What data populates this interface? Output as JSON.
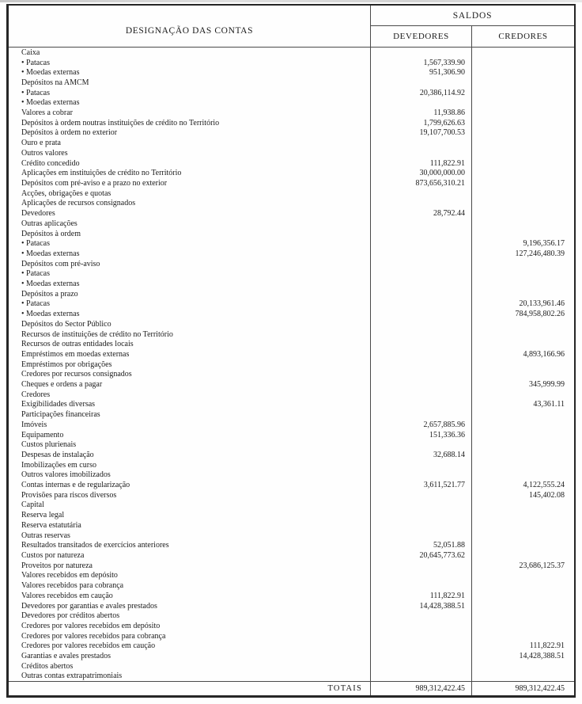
{
  "header": {
    "designacao": "DESIGNAÇÃO DAS CONTAS",
    "saldos": "SALDOS",
    "devedores": "DEVEDORES",
    "credores": "CREDORES"
  },
  "rows": [
    {
      "label": "Caixa",
      "dev": "",
      "cred": ""
    },
    {
      "label": "• Patacas",
      "dev": "1,567,339.90",
      "cred": ""
    },
    {
      "label": "• Moedas externas",
      "dev": "951,306.90",
      "cred": ""
    },
    {
      "label": "Depósitos na AMCM",
      "dev": "",
      "cred": ""
    },
    {
      "label": "• Patacas",
      "dev": "20,386,114.92",
      "cred": ""
    },
    {
      "label": "• Moedas externas",
      "dev": "",
      "cred": ""
    },
    {
      "label": "Valores a cobrar",
      "dev": "11,938.86",
      "cred": ""
    },
    {
      "label": "Depósitos à ordem noutras instituições de crédito no Território",
      "dev": "1,799,626.63",
      "cred": ""
    },
    {
      "label": "Depósitos à ordem no exterior",
      "dev": "19,107,700.53",
      "cred": ""
    },
    {
      "label": "Ouro e prata",
      "dev": "",
      "cred": ""
    },
    {
      "label": "Outros valores",
      "dev": "",
      "cred": ""
    },
    {
      "label": "Crédito concedido",
      "dev": "111,822.91",
      "cred": ""
    },
    {
      "label": "Aplicações em instituições de crédito no Território",
      "dev": "30,000,000.00",
      "cred": ""
    },
    {
      "label": "Depósitos com pré-aviso e a prazo no exterior",
      "dev": "873,656,310.21",
      "cred": ""
    },
    {
      "label": "Acções, obrigações e quotas",
      "dev": "",
      "cred": ""
    },
    {
      "label": "Aplicações de recursos consignados",
      "dev": "",
      "cred": ""
    },
    {
      "label": "Devedores",
      "dev": "28,792.44",
      "cred": ""
    },
    {
      "label": "Outras aplicações",
      "dev": "",
      "cred": ""
    },
    {
      "label": "Depósitos à ordem",
      "dev": "",
      "cred": ""
    },
    {
      "label": "• Patacas",
      "dev": "",
      "cred": "9,196,356.17"
    },
    {
      "label": "• Moedas externas",
      "dev": "",
      "cred": "127,246,480.39"
    },
    {
      "label": "Depósitos com pré-aviso",
      "dev": "",
      "cred": ""
    },
    {
      "label": "• Patacas",
      "dev": "",
      "cred": ""
    },
    {
      "label": "• Moedas externas",
      "dev": "",
      "cred": ""
    },
    {
      "label": "Depósitos a prazo",
      "dev": "",
      "cred": ""
    },
    {
      "label": "• Patacas",
      "dev": "",
      "cred": "20,133,961.46"
    },
    {
      "label": "• Moedas externas",
      "dev": "",
      "cred": "784,958,802.26"
    },
    {
      "label": "Depósitos do Sector Público",
      "dev": "",
      "cred": ""
    },
    {
      "label": "Recursos de instituições de crédito no Território",
      "dev": "",
      "cred": ""
    },
    {
      "label": "Recursos de outras entidades locais",
      "dev": "",
      "cred": ""
    },
    {
      "label": "Empréstimos em moedas externas",
      "dev": "",
      "cred": "4,893,166.96"
    },
    {
      "label": "Empréstimos por obrigações",
      "dev": "",
      "cred": ""
    },
    {
      "label": "Credores por recursos consignados",
      "dev": "",
      "cred": ""
    },
    {
      "label": "Cheques e ordens a pagar",
      "dev": "",
      "cred": "345,999.99"
    },
    {
      "label": "Credores",
      "dev": "",
      "cred": ""
    },
    {
      "label": "Exigibilidades diversas",
      "dev": "",
      "cred": "43,361.11"
    },
    {
      "label": "Participações financeiras",
      "dev": "",
      "cred": ""
    },
    {
      "label": "Imóveis",
      "dev": "2,657,885.96",
      "cred": ""
    },
    {
      "label": "Equipamento",
      "dev": "151,336.36",
      "cred": ""
    },
    {
      "label": "Custos plurienais",
      "dev": "",
      "cred": ""
    },
    {
      "label": "Despesas de instalação",
      "dev": "32,688.14",
      "cred": ""
    },
    {
      "label": "Imobilizações em curso",
      "dev": "",
      "cred": ""
    },
    {
      "label": "Outros valores imobilizados",
      "dev": "",
      "cred": ""
    },
    {
      "label": "Contas internas e de regularização",
      "dev": "3,611,521.77",
      "cred": "4,122,555.24"
    },
    {
      "label": "Provisões para riscos diversos",
      "dev": "",
      "cred": "145,402.08"
    },
    {
      "label": "Capital",
      "dev": "",
      "cred": ""
    },
    {
      "label": "Reserva legal",
      "dev": "",
      "cred": ""
    },
    {
      "label": "Reserva estatutária",
      "dev": "",
      "cred": ""
    },
    {
      "label": "Outras reservas",
      "dev": "",
      "cred": ""
    },
    {
      "label": "Resultados transitados de exercícios anteriores",
      "dev": "52,051.88",
      "cred": ""
    },
    {
      "label": "Custos por natureza",
      "dev": "20,645,773.62",
      "cred": ""
    },
    {
      "label": "Proveitos por natureza",
      "dev": "",
      "cred": "23,686,125.37"
    },
    {
      "label": "Valores recebidos em depósito",
      "dev": "",
      "cred": ""
    },
    {
      "label": "Valores recebidos para cobrança",
      "dev": "",
      "cred": ""
    },
    {
      "label": "Valores recebidos em caução",
      "dev": "111,822.91",
      "cred": ""
    },
    {
      "label": "Devedores por garantias e avales prestados",
      "dev": "14,428,388.51",
      "cred": ""
    },
    {
      "label": "Devedores por créditos abertos",
      "dev": "",
      "cred": ""
    },
    {
      "label": "Credores por valores recebidos em depósito",
      "dev": "",
      "cred": ""
    },
    {
      "label": "Credores por valores recebidos para cobrança",
      "dev": "",
      "cred": ""
    },
    {
      "label": "Credores por valores recebidos em caução",
      "dev": "",
      "cred": "111,822.91"
    },
    {
      "label": "Garantias e avales prestados",
      "dev": "",
      "cred": "14,428,388.51"
    },
    {
      "label": "Créditos abertos",
      "dev": "",
      "cred": ""
    },
    {
      "label": "Outras contas extrapatrimoniais",
      "dev": "",
      "cred": ""
    }
  ],
  "footer": {
    "label": "TOTAIS",
    "dev": "989,312,422.45",
    "cred": "989,312,422.45"
  },
  "colors": {
    "border": "#262626",
    "grid": "#4a4a4a",
    "text": "#1b1b1b",
    "paper": "#fefefe"
  }
}
